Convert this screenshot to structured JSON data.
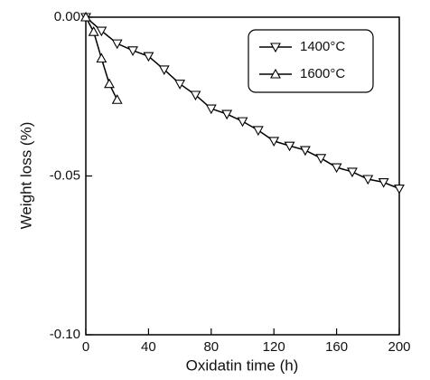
{
  "chart_data": {
    "type": "line",
    "xlabel": "Oxidatin time (h)",
    "ylabel": "Weight loss (%)",
    "xlim": [
      0,
      200
    ],
    "xticks": [
      0,
      40,
      80,
      120,
      160,
      200
    ],
    "ylim": [
      -0.1,
      0
    ],
    "yticks": [
      {
        "value": 0,
        "label": "0.00"
      },
      {
        "value": -0.05,
        "label": "-0.05"
      },
      {
        "value": -0.1,
        "label": "-0.10"
      }
    ],
    "legend": "upper right",
    "series": [
      {
        "name": "1400°C",
        "color": "#000000",
        "marker": "triangle-down",
        "x": [
          0,
          10,
          20,
          30,
          40,
          50,
          60,
          70,
          80,
          90,
          100,
          110,
          120,
          130,
          140,
          150,
          160,
          170,
          180,
          190,
          200
        ],
        "values": [
          0,
          -0.0043,
          -0.0083,
          -0.0105,
          -0.0123,
          -0.0165,
          -0.021,
          -0.0245,
          -0.0288,
          -0.0305,
          -0.0328,
          -0.0356,
          -0.039,
          -0.0405,
          -0.0419,
          -0.0444,
          -0.0473,
          -0.0487,
          -0.051,
          -0.052,
          -0.054
        ]
      },
      {
        "name": "1600°C",
        "color": "#000000",
        "marker": "triangle-up",
        "x": [
          0,
          5,
          10,
          15,
          20
        ],
        "values": [
          0,
          -0.0046,
          -0.013,
          -0.021,
          -0.026
        ]
      }
    ]
  }
}
